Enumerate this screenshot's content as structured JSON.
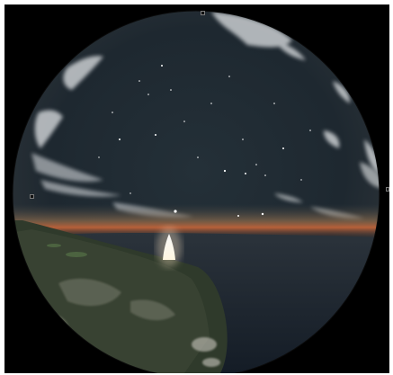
{
  "scene": {
    "kind": "fisheye-planetarium-view",
    "description_colors": {
      "background": "#000000",
      "sky_top": "#1c2630",
      "sky_horizon": "#3a3f44",
      "horizon_glow": "#c4643a",
      "ocean": "#1a2430",
      "land": "#2e3a2a",
      "rocket_plume": "#ffffff"
    }
  }
}
